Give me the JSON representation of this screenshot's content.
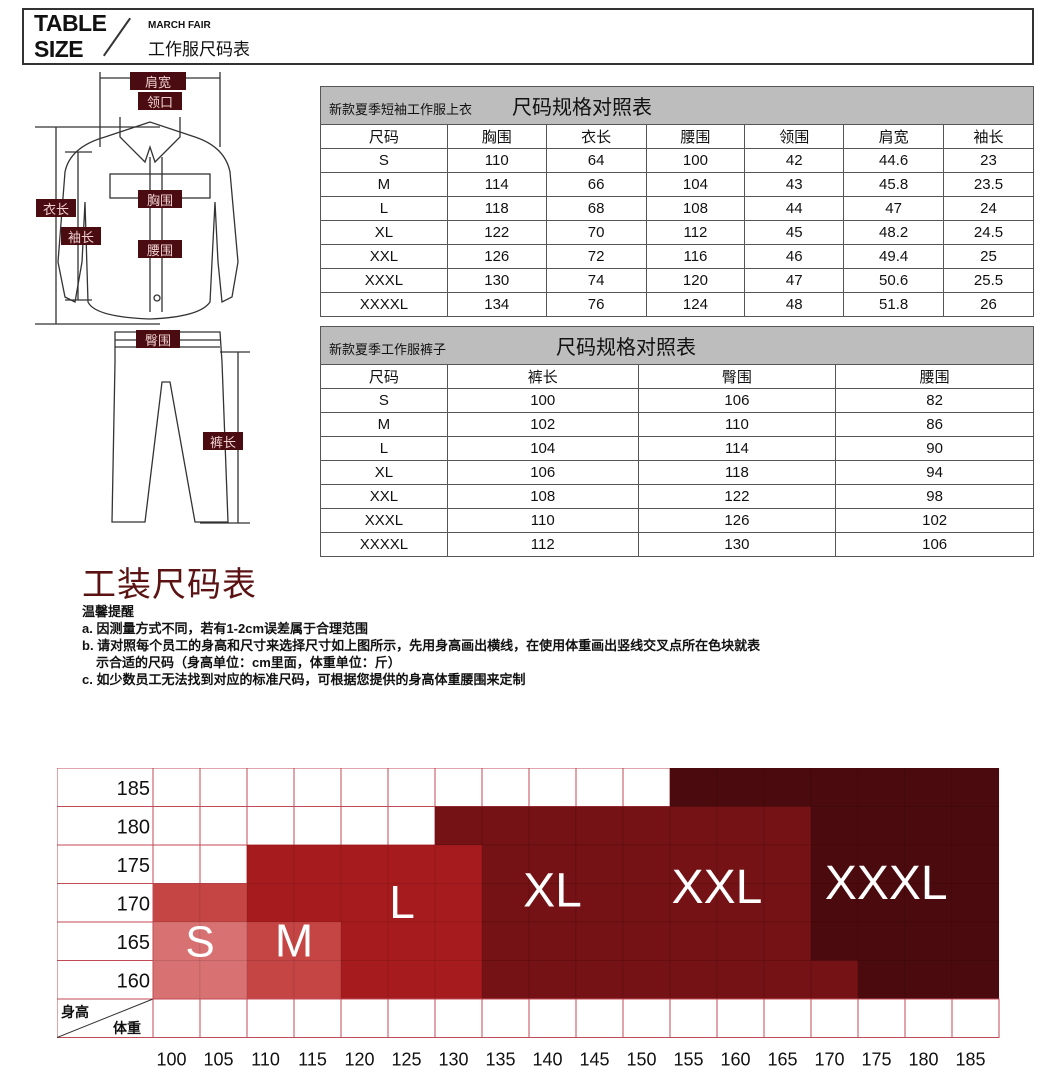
{
  "header": {
    "en_line1": "TABLE",
    "en_line2": "SIZE",
    "subtitle": "MARCH FAIR",
    "title_cn": "工作服尺码表"
  },
  "diagram": {
    "labels": {
      "shoulder": "肩宽",
      "collar": "领口",
      "chest": "胸围",
      "waist": "腰围",
      "length": "衣长",
      "sleeve": "袖长",
      "hip": "臀围",
      "pants_length": "裤长"
    },
    "label_color": "#4a0c10"
  },
  "shirt_table": {
    "caption": "新款夏季短袖工作服上衣",
    "title": "尺码规格对照表",
    "headers": [
      "尺码",
      "胸围",
      "衣长",
      "腰围",
      "领围",
      "肩宽",
      "袖长"
    ],
    "rows": [
      [
        "S",
        "110",
        "64",
        "100",
        "42",
        "44.6",
        "23"
      ],
      [
        "M",
        "114",
        "66",
        "104",
        "43",
        "45.8",
        "23.5"
      ],
      [
        "L",
        "118",
        "68",
        "108",
        "44",
        "47",
        "24"
      ],
      [
        "XL",
        "122",
        "70",
        "112",
        "45",
        "48.2",
        "24.5"
      ],
      [
        "XXL",
        "126",
        "72",
        "116",
        "46",
        "49.4",
        "25"
      ],
      [
        "XXXL",
        "130",
        "74",
        "120",
        "47",
        "50.6",
        "25.5"
      ],
      [
        "XXXXL",
        "134",
        "76",
        "124",
        "48",
        "51.8",
        "26"
      ]
    ]
  },
  "pants_table": {
    "caption": "新款夏季工作服裤子",
    "title": "尺码规格对照表",
    "headers": [
      "尺码",
      "裤长",
      "臀围",
      "腰围"
    ],
    "rows": [
      [
        "S",
        "100",
        "106",
        "82"
      ],
      [
        "M",
        "102",
        "110",
        "86"
      ],
      [
        "L",
        "104",
        "114",
        "90"
      ],
      [
        "XL",
        "106",
        "118",
        "94"
      ],
      [
        "XXL",
        "108",
        "122",
        "98"
      ],
      [
        "XXXL",
        "110",
        "126",
        "102"
      ],
      [
        "XXXXL",
        "112",
        "130",
        "106"
      ]
    ]
  },
  "guide": {
    "title": "工装尺码表",
    "notes_title": "温馨提醒",
    "notes": [
      "a. 因测量方式不同，若有1-2cm误差属于合理范围",
      "b. 请对照每个员工的身高和尺寸来选择尺寸如上图所示，先用身高画出横线，在使用体重画出竖线交叉点所在色块就表",
      "示合适的尺码（身高单位：cm里面，体重单位：斤）",
      "c. 如少数员工无法找到对应的标准尺码，可根据您提供的身高体重腰围来定制"
    ]
  },
  "chart_data": {
    "type": "heatmap",
    "corner_label_height": "身高",
    "corner_label_weight": "体重",
    "heights": [
      "185",
      "180",
      "175",
      "170",
      "165",
      "160"
    ],
    "weights": [
      "100",
      "105",
      "110",
      "115",
      "120",
      "125",
      "130",
      "135",
      "140",
      "145",
      "150",
      "155",
      "160",
      "165",
      "170",
      "175",
      "180",
      "185"
    ],
    "sizes": [
      "S",
      "M",
      "L",
      "XL",
      "XXL",
      "XXXL"
    ],
    "colors": {
      "S": "#d87272",
      "M": "#c54545",
      "L": "#a61c1e",
      "XL": "#741215",
      "XXL": "#741215",
      "XXXL": "#4b0a0e",
      "grid": "#c04a55"
    },
    "cells": [
      [
        "",
        "",
        "",
        "",
        "",
        "",
        "",
        "",
        "",
        "",
        "",
        "XXXL",
        "XXXL",
        "XXXL",
        "XXXL",
        "XXXL",
        "XXXL",
        "XXXL"
      ],
      [
        "",
        "",
        "",
        "",
        "",
        "",
        "XL",
        "XL",
        "XL",
        "XL",
        "XL",
        "XXL",
        "XXL",
        "XXL",
        "XXXL",
        "XXXL",
        "XXXL",
        "XXXL"
      ],
      [
        "",
        "",
        "L",
        "L",
        "L",
        "L",
        "L",
        "XL",
        "XL",
        "XL",
        "XL",
        "XXL",
        "XXL",
        "XXL",
        "XXXL",
        "XXXL",
        "XXXL",
        "XXXL"
      ],
      [
        "M",
        "M",
        "L",
        "L",
        "L",
        "L",
        "L",
        "XL",
        "XL",
        "XL",
        "XL",
        "XXL",
        "XXL",
        "XXL",
        "XXXL",
        "XXXL",
        "XXXL",
        "XXXL"
      ],
      [
        "S",
        "S",
        "M",
        "M",
        "L",
        "L",
        "L",
        "XL",
        "XL",
        "XL",
        "XL",
        "XXL",
        "XXL",
        "XXL",
        "XXXL",
        "XXXL",
        "XXXL",
        "XXXL"
      ],
      [
        "S",
        "S",
        "M",
        "M",
        "L",
        "L",
        "L",
        "XL",
        "XL",
        "XL",
        "XL",
        "XXL",
        "XXL",
        "XXL",
        "XXL",
        "XXXL",
        "XXXL",
        "XXXL"
      ]
    ]
  }
}
